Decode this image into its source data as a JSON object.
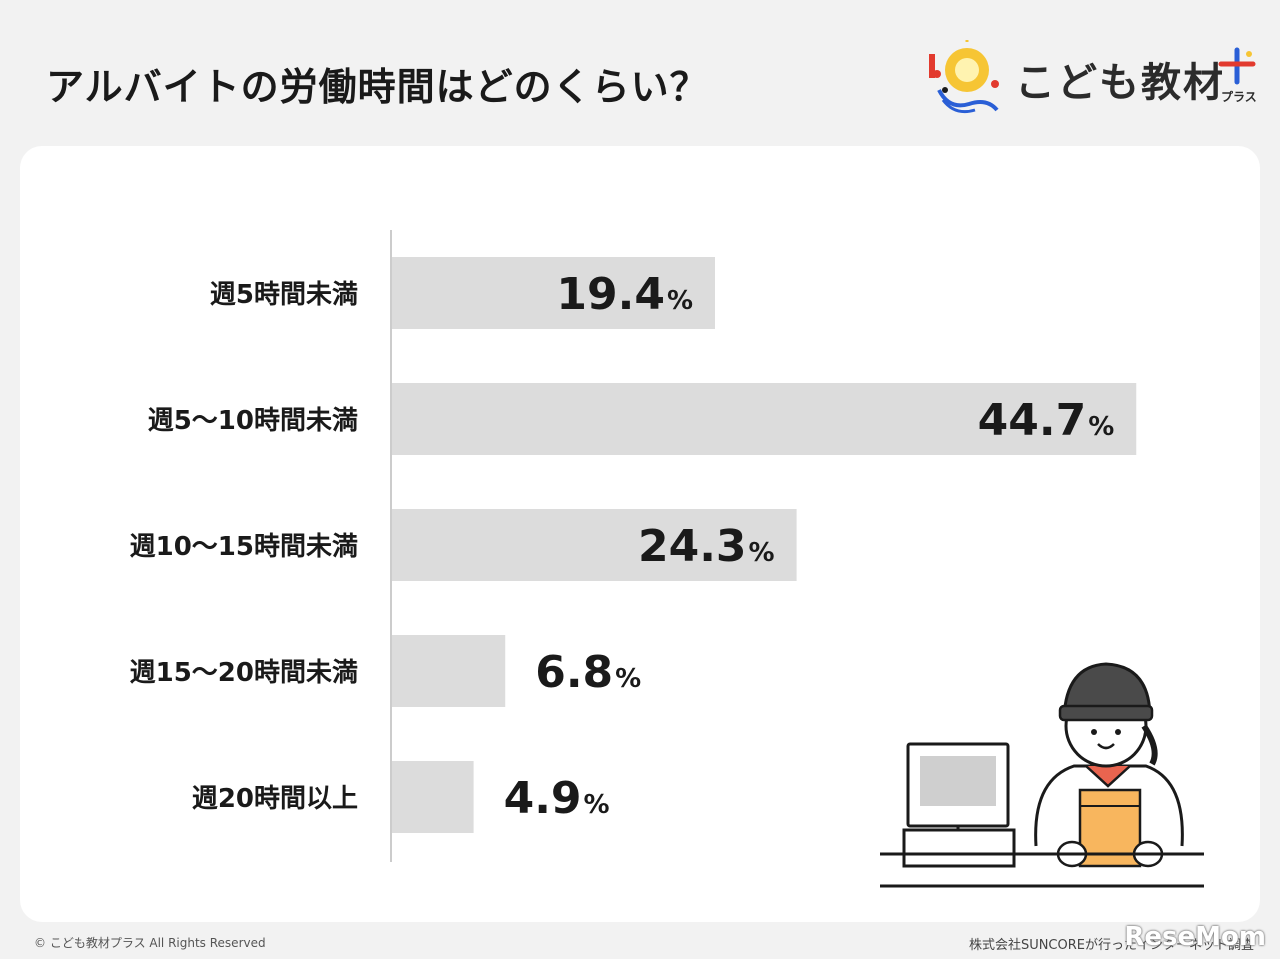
{
  "title": "アルバイトの労働時間はどのくらい？",
  "logo": {
    "text": "こども教材",
    "sub": "プラス"
  },
  "chart_data": {
    "type": "bar",
    "orientation": "horizontal",
    "categories": [
      "週5時間未満",
      "週5〜10時間未満",
      "週10〜15時間未満",
      "週15〜20時間未満",
      "週20時間以上"
    ],
    "values": [
      19.4,
      44.7,
      24.3,
      6.8,
      4.9
    ],
    "value_labels": [
      "19.4",
      "44.7",
      "24.3",
      "6.8",
      "4.9"
    ],
    "unit": "%",
    "bar_color": "#dcdcdc",
    "xlim": [
      0,
      50
    ],
    "grid": false,
    "legend": "none"
  },
  "footer": {
    "copyright": "© こども教材プラス All Rights Reserved",
    "source": "株式会社SUNCOREが行ったインターネット調査",
    "watermark": "ReseMom"
  }
}
